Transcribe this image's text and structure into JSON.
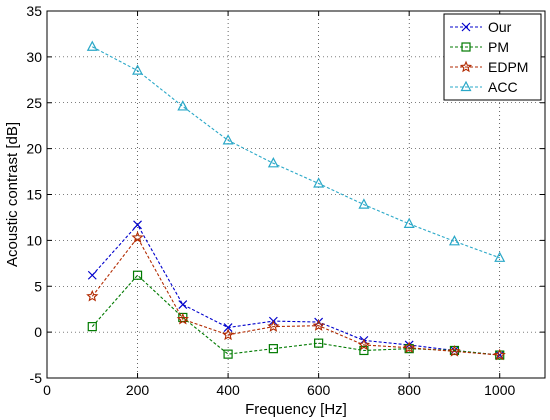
{
  "chart_data": {
    "type": "line",
    "title": "",
    "xlabel": "Frequency [Hz]",
    "ylabel": "Acoustic contrast [dB]",
    "xlim": [
      0,
      1100
    ],
    "ylim": [
      -5,
      35
    ],
    "xticks": [
      0,
      200,
      400,
      600,
      800,
      1000
    ],
    "yticks": [
      -5,
      0,
      5,
      10,
      15,
      20,
      25,
      30,
      35
    ],
    "grid": true,
    "legend_position": "top-right",
    "x": [
      100,
      200,
      300,
      400,
      500,
      600,
      700,
      800,
      900,
      1000
    ],
    "series": [
      {
        "name": "Our",
        "marker": "x",
        "color": "#0000cc",
        "values": [
          6.2,
          11.7,
          3.0,
          0.5,
          1.2,
          1.1,
          -0.9,
          -1.4,
          -2.0,
          -2.5
        ]
      },
      {
        "name": "PM",
        "marker": "square",
        "color": "#007a00",
        "values": [
          0.6,
          6.2,
          1.6,
          -2.4,
          -1.8,
          -1.2,
          -2.0,
          -1.8,
          -2.0,
          -2.5
        ]
      },
      {
        "name": "EDPM",
        "marker": "star",
        "color": "#b22a00",
        "values": [
          3.9,
          10.3,
          1.4,
          -0.3,
          0.6,
          0.7,
          -1.4,
          -1.7,
          -2.1,
          -2.5
        ]
      },
      {
        "name": "ACC",
        "marker": "triangle",
        "color": "#2aa8c8",
        "values": [
          31.1,
          28.5,
          24.6,
          20.9,
          18.4,
          16.2,
          13.9,
          11.8,
          9.9,
          8.1
        ]
      }
    ]
  }
}
